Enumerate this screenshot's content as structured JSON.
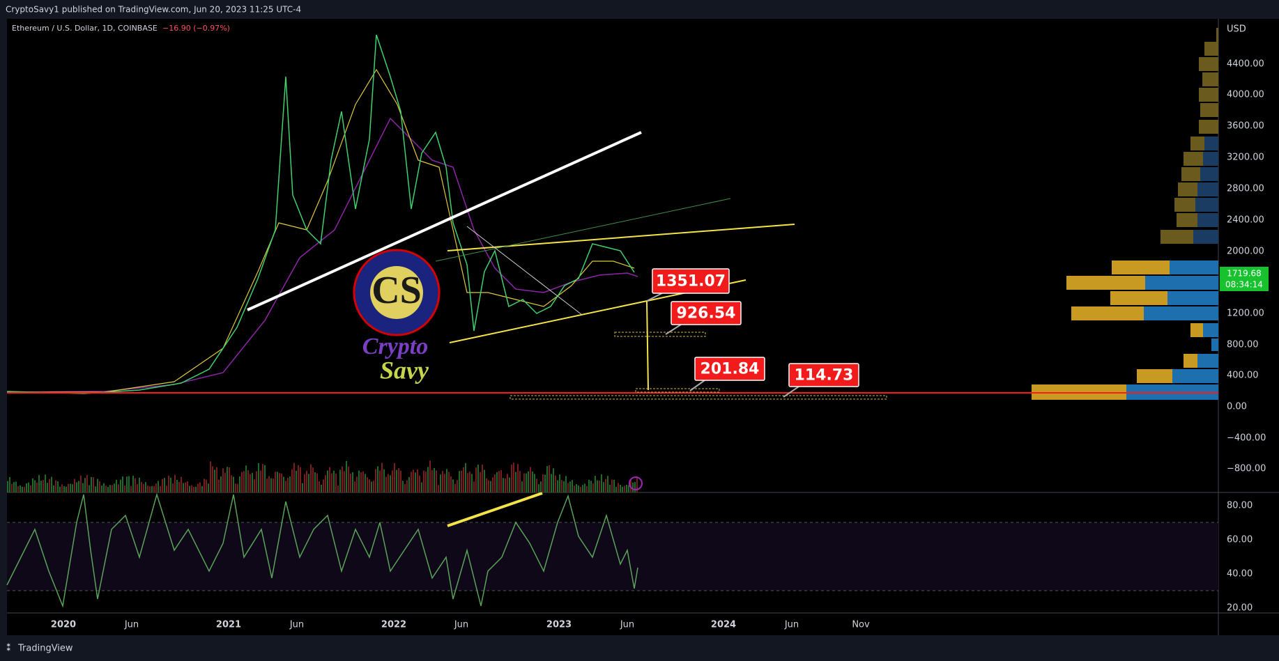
{
  "header": {
    "publisher": "CryptoSavy1 published on TradingView.com, Jun 20, 2023 11:25 UTC-4"
  },
  "symbol": {
    "name": "Ethereum / U.S. Dollar, 1D, COINBASE",
    "change": "−16.90 (−0.97%)"
  },
  "price_axis": {
    "currency": "USD",
    "ticks": [
      "4400.00",
      "4000.00",
      "3600.00",
      "3200.00",
      "2800.00",
      "2400.00",
      "2000.00",
      "1200.00",
      "800.00",
      "400.00",
      "0.00",
      "−400.00",
      "−800.00"
    ],
    "last_price": "1719.68",
    "countdown": "08:34:14"
  },
  "rsi_axis": {
    "ticks": [
      "80.00",
      "60.00",
      "40.00",
      "20.00"
    ]
  },
  "time_axis": {
    "labels": [
      "2020",
      "Jun",
      "2021",
      "Jun",
      "2022",
      "Jun",
      "2023",
      "Jun",
      "2024",
      "Jun",
      "Nov"
    ]
  },
  "annotations": [
    "1351.07",
    "926.54",
    "201.84",
    "114.73"
  ],
  "logo": {
    "monogram": "CS",
    "line1": "Crypto",
    "line2": "Savy"
  },
  "footer": {
    "brand": "TradingView"
  }
}
